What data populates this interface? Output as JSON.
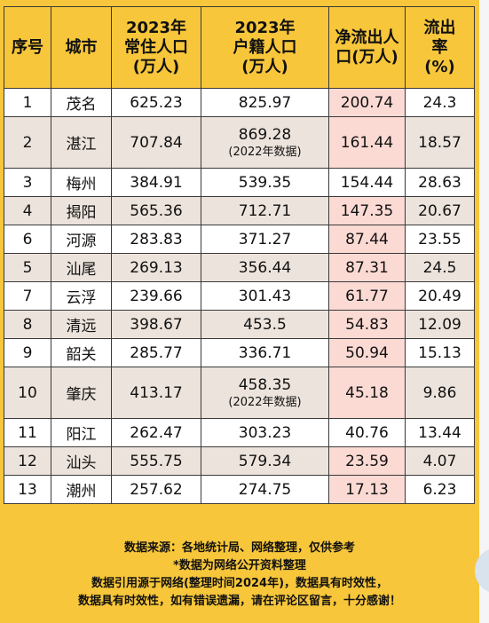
{
  "header": {
    "seq": "序号",
    "city": "城市",
    "perm_pop": "2023年常住人口(万人)",
    "hukou_pop": "2023年户籍人口(万人)",
    "net_out": "净流出人口(万人)",
    "out_rate": "流出率(%)"
  },
  "rows": [
    {
      "seq": "1",
      "city": "茂名",
      "perm": "625.23",
      "hukou": "825.97",
      "hukou_note": "",
      "net": "200.74",
      "rate": "24.3"
    },
    {
      "seq": "2",
      "city": "湛江",
      "perm": "707.84",
      "hukou": "869.28",
      "hukou_note": "(2022年数据)",
      "net": "161.44",
      "rate": "18.57"
    },
    {
      "seq": "3",
      "city": "梅州",
      "perm": "384.91",
      "hukou": "539.35",
      "hukou_note": "",
      "net": "154.44",
      "rate": "28.63"
    },
    {
      "seq": "4",
      "city": "揭阳",
      "perm": "565.36",
      "hukou": "712.71",
      "hukou_note": "",
      "net": "147.35",
      "rate": "20.67"
    },
    {
      "seq": "6",
      "city": "河源",
      "perm": "283.83",
      "hukou": "371.27",
      "hukou_note": "",
      "net": "87.44",
      "rate": "23.55"
    },
    {
      "seq": "5",
      "city": "汕尾",
      "perm": "269.13",
      "hukou": "356.44",
      "hukou_note": "",
      "net": "87.31",
      "rate": "24.5"
    },
    {
      "seq": "7",
      "city": "云浮",
      "perm": "239.66",
      "hukou": "301.43",
      "hukou_note": "",
      "net": "61.77",
      "rate": "20.49"
    },
    {
      "seq": "8",
      "city": "清远",
      "perm": "398.67",
      "hukou": "453.5",
      "hukou_note": "",
      "net": "54.83",
      "rate": "12.09"
    },
    {
      "seq": "9",
      "city": "韶关",
      "perm": "285.77",
      "hukou": "336.71",
      "hukou_note": "",
      "net": "50.94",
      "rate": "15.13"
    },
    {
      "seq": "10",
      "city": "肇庆",
      "perm": "413.17",
      "hukou": "458.35",
      "hukou_note": "(2022年数据)",
      "net": "45.18",
      "rate": "9.86"
    },
    {
      "seq": "11",
      "city": "阳江",
      "perm": "262.47",
      "hukou": "303.23",
      "hukou_note": "",
      "net": "40.76",
      "rate": "13.44"
    },
    {
      "seq": "12",
      "city": "汕头",
      "perm": "555.75",
      "hukou": "579.34",
      "hukou_note": "",
      "net": "23.59",
      "rate": "4.07"
    },
    {
      "seq": "13",
      "city": "潮州",
      "perm": "257.62",
      "hukou": "274.75",
      "hukou_note": "",
      "net": "17.13",
      "rate": "6.23"
    }
  ],
  "footer": {
    "line1": "数据来源：各地统计局、网络整理，仅供参考",
    "line2": "*数据为网络公开资料整理",
    "line3": "数据引用源于网络(整理时间2024年)，数据具有时效性，",
    "line4": "数据具有时效性，如有错误遗漏，请在评论区留言，十分感谢！"
  },
  "colors": {
    "frame": "#f7c63a",
    "row_alt": "#ece3dc",
    "net_highlight": "#fcdad4"
  }
}
